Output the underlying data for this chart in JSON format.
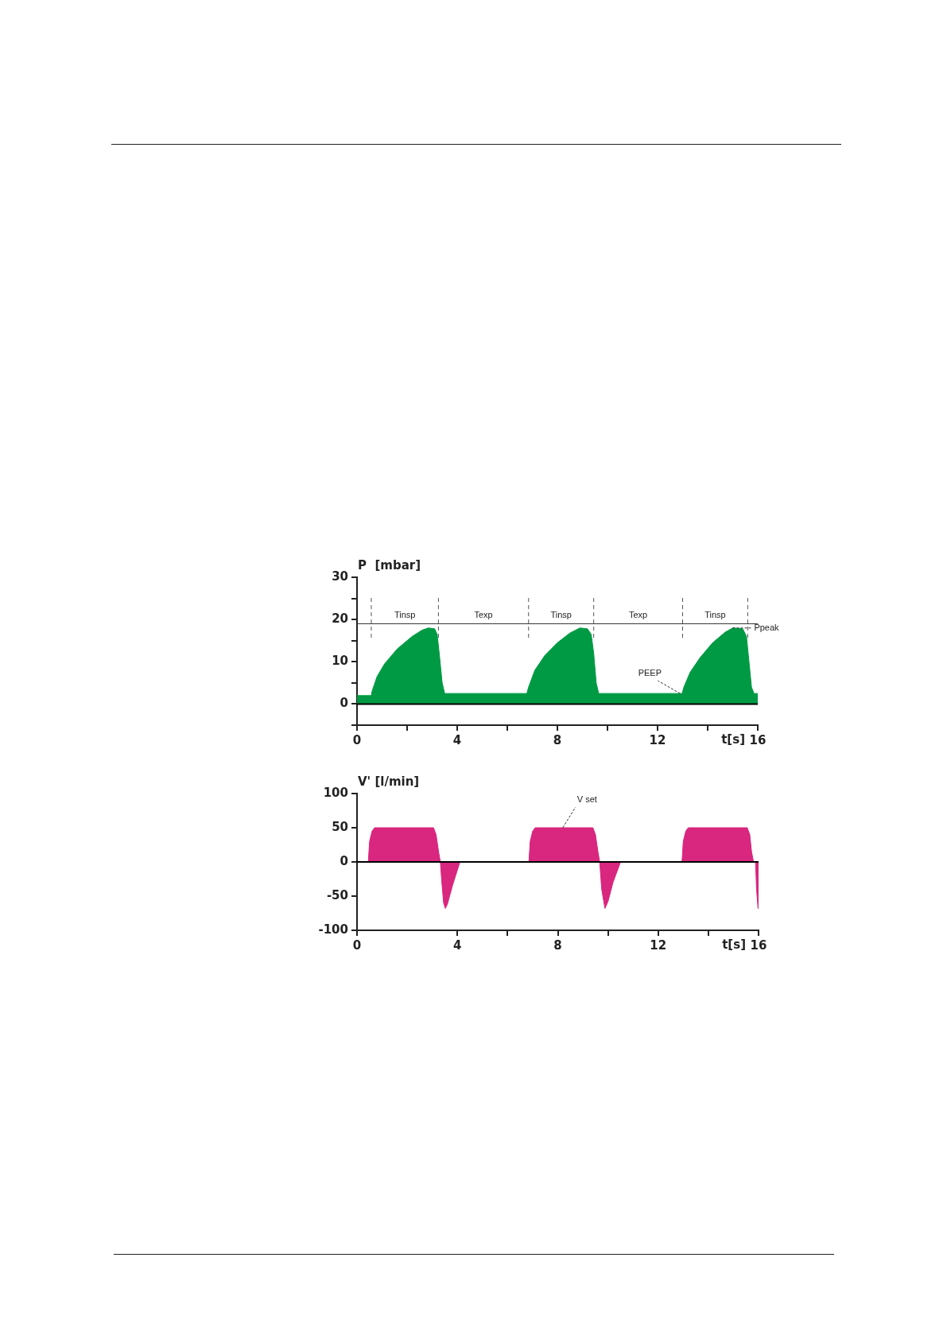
{
  "chart_data": [
    {
      "type": "area",
      "ylabel": "P  [mbar]",
      "xlabel": "t[s]",
      "marker": "none",
      "legend": false,
      "xlim": [
        0,
        16
      ],
      "xticks": [
        0,
        {
          "value": 2,
          "label": null
        },
        4,
        {
          "value": 6,
          "label": null
        },
        8,
        {
          "value": 10,
          "label": null
        },
        12,
        {
          "value": 14,
          "label": null
        },
        16
      ],
      "ylim": [
        -5,
        30
      ],
      "yticks": [
        {
          "value": -5,
          "label": null
        },
        0,
        {
          "value": 5,
          "label": null
        },
        10,
        {
          "value": 15,
          "label": null
        },
        20,
        {
          "value": 25,
          "label": null
        },
        30
      ],
      "series": [
        {
          "color": "#009a44",
          "x": [
            0,
            0.57,
            0.6,
            0.8,
            1.1,
            1.6,
            2.2,
            2.6,
            2.85,
            3.1,
            3.2,
            3.3,
            3.4,
            3.5,
            6.78,
            6.85,
            7.1,
            7.5,
            8.0,
            8.5,
            8.9,
            9.2,
            9.35,
            9.45,
            9.55,
            9.65,
            12.98,
            13.05,
            13.3,
            13.7,
            14.2,
            14.7,
            15.0,
            15.4,
            15.55,
            15.65,
            15.75,
            15.85,
            16
          ],
          "values": [
            2,
            2,
            3,
            6.5,
            9.5,
            13,
            16,
            17.5,
            18,
            17.8,
            16.5,
            11,
            5,
            2.5,
            2.5,
            4,
            8,
            11.5,
            14.5,
            16.8,
            18,
            17.8,
            16.5,
            12,
            5,
            2.5,
            2.5,
            4,
            7.5,
            11,
            14.5,
            17,
            18,
            17.8,
            16,
            10,
            4,
            2.5,
            2.5
          ]
        }
      ],
      "ref_lines": [
        {
          "axis": "y",
          "value": 0,
          "color": "#000000"
        },
        {
          "axis": "y",
          "value": 19,
          "color": "#333333"
        },
        {
          "axis": "x",
          "value": 0.57,
          "color": "#555555",
          "line_style": "dashed"
        },
        {
          "axis": "x",
          "value": 3.25,
          "color": "#555555",
          "line_style": "dashed"
        },
        {
          "axis": "x",
          "value": 6.85,
          "color": "#555555",
          "line_style": "dashed"
        },
        {
          "axis": "x",
          "value": 9.45,
          "color": "#555555",
          "line_style": "dashed"
        },
        {
          "axis": "x",
          "value": 13.0,
          "color": "#555555",
          "line_style": "dashed"
        },
        {
          "axis": "x",
          "value": 15.6,
          "color": "#555555",
          "line_style": "dashed"
        }
      ],
      "annotations": [
        "Tinsp",
        "Texp",
        "Tinsp",
        "Texp",
        "Tinsp",
        {
          "text": "Ppeak",
          "x": 15.0,
          "y": 18
        },
        {
          "text": "PEEP",
          "x": 12.9,
          "y": 2.5
        }
      ]
    },
    {
      "type": "area",
      "ylabel": "V' [l/min]",
      "xlabel": "t[s]",
      "marker": "none",
      "legend": false,
      "xlim": [
        0,
        16
      ],
      "xticks": [
        0,
        4,
        {
          "value": 6,
          "label": null
        },
        8,
        {
          "value": 10,
          "label": null
        },
        12,
        {
          "value": 14,
          "label": null
        },
        16
      ],
      "ylim": [
        -100,
        100
      ],
      "yticks": [
        -100,
        -50,
        0,
        50,
        100
      ],
      "series": [
        {
          "color": "#d9267f",
          "x": [
            0,
            0.45,
            0.5,
            0.6,
            0.7,
            3.05,
            3.15,
            3.25,
            3.32,
            3.38,
            3.45,
            3.52,
            3.6,
            3.8,
            4.1,
            6.85,
            6.9,
            7.0,
            7.1,
            9.4,
            9.5,
            9.6,
            9.67,
            9.75,
            9.88,
            10.0,
            10.2,
            10.5,
            12.95,
            13.0,
            13.1,
            13.2,
            15.55,
            15.65,
            15.72,
            15.8,
            15.88,
            15.92,
            15.98,
            16
          ],
          "values": [
            0,
            0,
            30,
            45,
            50,
            50,
            40,
            15,
            0,
            -30,
            -60,
            -68,
            -62,
            -35,
            0,
            0,
            30,
            45,
            50,
            50,
            40,
            15,
            0,
            -40,
            -68,
            -58,
            -30,
            0,
            0,
            30,
            45,
            50,
            50,
            40,
            15,
            0,
            0,
            -40,
            -68,
            -68
          ]
        }
      ],
      "ref_lines": [
        {
          "axis": "y",
          "value": 0,
          "color": "#000000"
        }
      ],
      "annotations": [
        {
          "text": "V set",
          "x": 8.2,
          "y": 50
        }
      ]
    }
  ]
}
